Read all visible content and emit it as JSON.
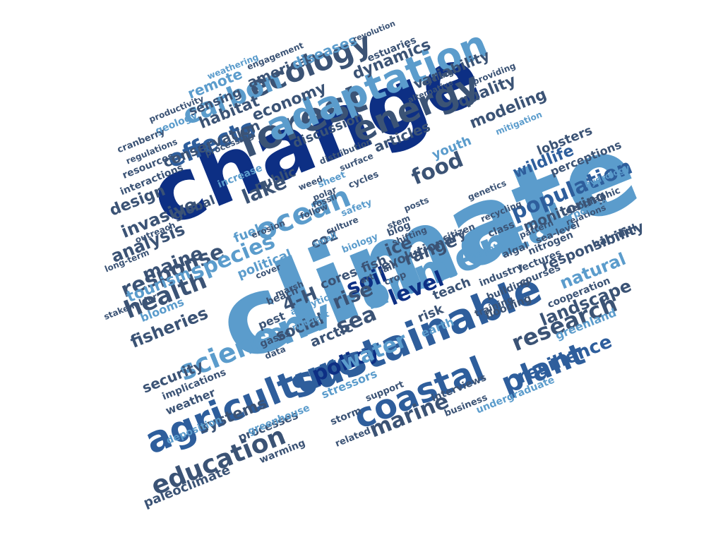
{
  "palette": {
    "navy": "#0d2f84",
    "blue": "#2e5e9c",
    "slate": "#3b5375",
    "sky": "#5b9ccc",
    "light": "#8ab8dd"
  },
  "words": [
    {
      "text": "climate",
      "color": "sky"
    },
    {
      "text": "change",
      "color": "navy"
    },
    {
      "text": "environmental",
      "color": "sky"
    },
    {
      "text": "sustainable",
      "color": "blue"
    },
    {
      "text": "agriculture",
      "color": "blue"
    },
    {
      "text": "coastal",
      "color": "blue"
    },
    {
      "text": "forest",
      "color": "slate"
    },
    {
      "text": "energy",
      "color": "slate"
    },
    {
      "text": "adaptation",
      "color": "sky"
    },
    {
      "text": "ecology",
      "color": "slate"
    },
    {
      "text": "ocean",
      "color": "sky"
    },
    {
      "text": "education",
      "color": "slate"
    },
    {
      "text": "plant",
      "color": "blue"
    },
    {
      "text": "research",
      "color": "slate"
    },
    {
      "text": "science",
      "color": "sky"
    },
    {
      "text": "carbon",
      "color": "sky"
    },
    {
      "text": "effects",
      "color": "blue"
    },
    {
      "text": "population",
      "color": "blue"
    },
    {
      "text": "marine",
      "color": "slate"
    },
    {
      "text": "policy",
      "color": "navy"
    },
    {
      "text": "health",
      "color": "slate"
    },
    {
      "text": "response",
      "color": "slate"
    },
    {
      "text": "water",
      "color": "sky"
    },
    {
      "text": "species",
      "color": "sky"
    },
    {
      "text": "level",
      "color": "navy"
    },
    {
      "text": "soil",
      "color": "navy"
    },
    {
      "text": "sea",
      "color": "slate"
    },
    {
      "text": "rise",
      "color": "slate"
    },
    {
      "text": "food",
      "color": "slate"
    },
    {
      "text": "lake",
      "color": "slate"
    },
    {
      "text": "fisheries",
      "color": "slate"
    },
    {
      "text": "resilience",
      "color": "blue"
    },
    {
      "text": "landscape",
      "color": "slate"
    },
    {
      "text": "systems",
      "color": "slate"
    },
    {
      "text": "modeling",
      "color": "slate"
    },
    {
      "text": "dynamics",
      "color": "slate"
    },
    {
      "text": "economy",
      "color": "slate"
    },
    {
      "text": "habitat",
      "color": "slate"
    },
    {
      "text": "quality",
      "color": "slate"
    },
    {
      "text": "range",
      "color": "slate"
    },
    {
      "text": "monitoring",
      "color": "slate"
    },
    {
      "text": "wildlife",
      "color": "blue"
    },
    {
      "text": "conservation",
      "color": "slate"
    },
    {
      "text": "invasive",
      "color": "slate"
    },
    {
      "text": "analysis",
      "color": "slate"
    },
    {
      "text": "maine",
      "color": "slate"
    },
    {
      "text": "tourism",
      "color": "sky"
    },
    {
      "text": "security",
      "color": "slate"
    },
    {
      "text": "4-H",
      "color": "slate"
    },
    {
      "text": "social",
      "color": "slate"
    },
    {
      "text": "ice",
      "color": "slate"
    },
    {
      "text": "american",
      "color": "slate"
    },
    {
      "text": "variability",
      "color": "slate"
    },
    {
      "text": "diseases",
      "color": "sky"
    },
    {
      "text": "remote",
      "color": "sky"
    },
    {
      "text": "sensing",
      "color": "slate"
    },
    {
      "text": "design",
      "color": "slate"
    },
    {
      "text": "articles",
      "color": "slate"
    },
    {
      "text": "discussion",
      "color": "slate"
    },
    {
      "text": "youth",
      "color": "sky"
    },
    {
      "text": "evolutionary",
      "color": "slate"
    },
    {
      "text": "natural",
      "color": "sky"
    },
    {
      "text": "responsibility",
      "color": "slate"
    },
    {
      "text": "lobsters",
      "color": "slate"
    },
    {
      "text": "perceptions",
      "color": "slate"
    },
    {
      "text": "global",
      "color": "slate"
    },
    {
      "text": "political",
      "color": "sky"
    },
    {
      "text": "fuels",
      "color": "sky"
    },
    {
      "text": "co2",
      "color": "slate"
    },
    {
      "text": "public",
      "color": "slate"
    },
    {
      "text": "teach",
      "color": "slate"
    },
    {
      "text": "cores",
      "color": "slate"
    },
    {
      "text": "fish",
      "color": "slate"
    },
    {
      "text": "risk",
      "color": "slate"
    },
    {
      "text": "blooms",
      "color": "sky"
    },
    {
      "text": "arctic",
      "color": "slate"
    },
    {
      "text": "earth",
      "color": "sky"
    },
    {
      "text": "greenland",
      "color": "sky"
    },
    {
      "text": "cooperation",
      "color": "slate"
    },
    {
      "text": "weather",
      "color": "slate"
    },
    {
      "text": "implications",
      "color": "slate"
    },
    {
      "text": "stressors",
      "color": "sky"
    },
    {
      "text": "processes",
      "color": "slate"
    },
    {
      "text": "paleoclimate",
      "color": "slate"
    },
    {
      "text": "warming",
      "color": "slate"
    },
    {
      "text": "storm",
      "color": "slate"
    },
    {
      "text": "undergraduate",
      "color": "sky"
    },
    {
      "text": "interviews",
      "color": "slate"
    },
    {
      "text": "business",
      "color": "slate"
    },
    {
      "text": "greenhouse",
      "color": "sky"
    },
    {
      "text": "deposition",
      "color": "sky"
    },
    {
      "text": "related",
      "color": "slate"
    },
    {
      "text": "support",
      "color": "slate"
    },
    {
      "text": "harmful",
      "color": "slate"
    },
    {
      "text": "flooding",
      "color": "slate"
    },
    {
      "text": "building",
      "color": "slate"
    },
    {
      "text": "courses",
      "color": "slate"
    },
    {
      "text": "lectures",
      "color": "slate"
    },
    {
      "text": "industry",
      "color": "slate"
    },
    {
      "text": "training",
      "color": "slate"
    },
    {
      "text": "nitrogen",
      "color": "slate"
    },
    {
      "text": "algal",
      "color": "slate"
    },
    {
      "text": "sea-level",
      "color": "slate"
    },
    {
      "text": "relations",
      "color": "slate"
    },
    {
      "text": "pattern",
      "color": "slate"
    },
    {
      "text": "geographic",
      "color": "slate"
    },
    {
      "text": "corporate",
      "color": "sky"
    },
    {
      "text": "recycling",
      "color": "slate"
    },
    {
      "text": "class",
      "color": "slate"
    },
    {
      "text": "agents",
      "color": "sky"
    },
    {
      "text": "citizen",
      "color": "slate"
    },
    {
      "text": "hydrology",
      "color": "sky"
    },
    {
      "text": "genetics",
      "color": "slate"
    },
    {
      "text": "mitigation",
      "color": "sky"
    },
    {
      "text": "providing",
      "color": "slate"
    },
    {
      "text": "cycling",
      "color": "slate"
    },
    {
      "text": "alternative",
      "color": "slate"
    },
    {
      "text": "estuaries",
      "color": "slate"
    },
    {
      "text": "revolution",
      "color": "slate"
    },
    {
      "text": "engagement",
      "color": "slate"
    },
    {
      "text": "weathering",
      "color": "sky"
    },
    {
      "text": "productivity",
      "color": "slate"
    },
    {
      "text": "geology",
      "color": "sky"
    },
    {
      "text": "cranberry",
      "color": "slate"
    },
    {
      "text": "regulations",
      "color": "slate"
    },
    {
      "text": "resources",
      "color": "slate"
    },
    {
      "text": "interactions",
      "color": "slate"
    },
    {
      "text": "processing",
      "color": "slate"
    },
    {
      "text": "distribution",
      "color": "slate"
    },
    {
      "text": "increase",
      "color": "sky"
    },
    {
      "text": "outreach",
      "color": "slate"
    },
    {
      "text": "long-term",
      "color": "slate"
    },
    {
      "text": "stakeholder",
      "color": "slate"
    },
    {
      "text": "pest",
      "color": "slate"
    },
    {
      "text": "beach",
      "color": "slate"
    },
    {
      "text": "gases",
      "color": "slate"
    },
    {
      "text": "data",
      "color": "slate"
    },
    {
      "text": "analytical",
      "color": "sky"
    },
    {
      "text": "nutrient",
      "color": "sky"
    },
    {
      "text": "marsh",
      "color": "slate"
    },
    {
      "text": "cover",
      "color": "slate"
    },
    {
      "text": "small",
      "color": "sky"
    },
    {
      "text": "erosion",
      "color": "slate"
    },
    {
      "text": "weed",
      "color": "slate"
    },
    {
      "text": "follow",
      "color": "slate"
    },
    {
      "text": "fossil",
      "color": "slate"
    },
    {
      "text": "polar",
      "color": "slate"
    },
    {
      "text": "culture",
      "color": "slate"
    },
    {
      "text": "biology",
      "color": "sky"
    },
    {
      "text": "safety",
      "color": "sky"
    },
    {
      "text": "cycles",
      "color": "slate"
    },
    {
      "text": "sheet",
      "color": "sky"
    },
    {
      "text": "surface",
      "color": "slate"
    },
    {
      "text": "shifting",
      "color": "slate"
    },
    {
      "text": "blog",
      "color": "slate"
    },
    {
      "text": "rain",
      "color": "slate"
    },
    {
      "text": "crop",
      "color": "slate"
    },
    {
      "text": "stem",
      "color": "slate"
    },
    {
      "text": "posts",
      "color": "slate"
    },
    {
      "text": "art",
      "color": "slate"
    }
  ]
}
